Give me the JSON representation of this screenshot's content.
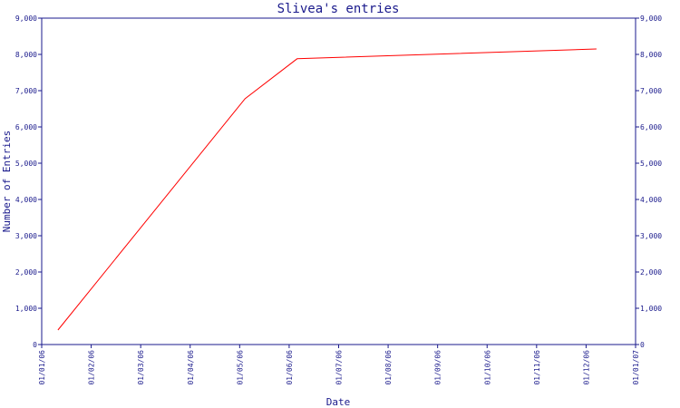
{
  "chart_data": {
    "type": "line",
    "title": "Slivea's entries",
    "xlabel": "Date",
    "ylabel": "Number of Entries",
    "ylim": [
      0,
      9000
    ],
    "yticks": [
      "0",
      "1,000",
      "2,000",
      "3,000",
      "4,000",
      "5,000",
      "6,000",
      "7,000",
      "8,000",
      "9,000"
    ],
    "xticks": [
      "01/01/06",
      "01/02/06",
      "01/03/06",
      "01/04/06",
      "01/05/06",
      "01/06/06",
      "01/07/06",
      "01/08/06",
      "01/09/06",
      "01/10/06",
      "01/11/06",
      "01/12/06",
      "01/01/07"
    ],
    "xlim": [
      "2006-01-01",
      "2007-01-01"
    ],
    "grid": false,
    "colors": {
      "line": "#ff0000",
      "axis": "#1a1a8c"
    },
    "series": [
      {
        "x": [
          "2006-01-11",
          "2006-05-06",
          "2006-06-07",
          "2006-12-08"
        ],
        "values": [
          400,
          6780,
          7880,
          8150
        ]
      }
    ]
  }
}
